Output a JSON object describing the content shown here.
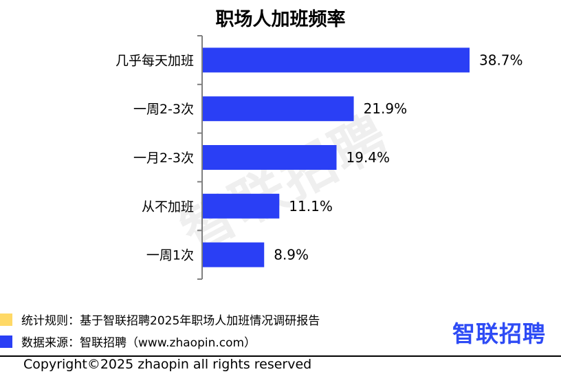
{
  "chart_data": {
    "type": "bar",
    "orientation": "horizontal",
    "title": "职场人加班频率",
    "categories": [
      "几乎每天加班",
      "一周2-3次",
      "一月2-3次",
      "从不加班",
      "一周1次"
    ],
    "values": [
      38.7,
      21.9,
      19.4,
      11.1,
      8.9
    ],
    "value_labels": [
      "38.7%",
      "21.9%",
      "19.4%",
      "11.1%",
      "8.9%"
    ],
    "xlim": [
      0,
      40
    ],
    "grid": false,
    "bar_color": "#2A3FF5"
  },
  "watermark": "智联招聘",
  "legend": {
    "stats_rule": "统计规则：基于智联招聘2025年职场人加班情况调研报告",
    "stats_color": "#FFD966",
    "source": "数据来源：智联招聘（www.zhaopin.com）",
    "source_color": "#2A3FF5"
  },
  "logo_text": "智联招聘",
  "copyright": "Copyright©2025 zhaopin all rights reserved"
}
